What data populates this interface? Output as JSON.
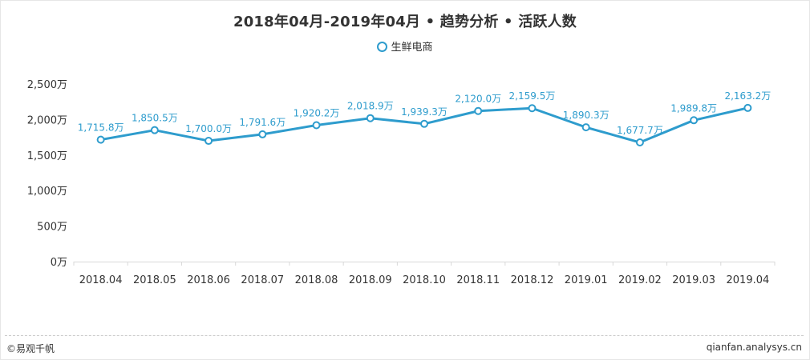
{
  "footer": {
    "left_text": "©易观千帆",
    "right_text": "qianfan.analysys.cn"
  },
  "chart_data": {
    "type": "line",
    "title": "2018年04月-2019年04月 • 趋势分析 • 活跃人数",
    "categories": [
      "2018.04",
      "2018.05",
      "2018.06",
      "2018.07",
      "2018.08",
      "2018.09",
      "2018.10",
      "2018.11",
      "2018.12",
      "2019.01",
      "2019.02",
      "2019.03",
      "2019.04"
    ],
    "series": [
      {
        "name": "生鲜电商",
        "values": [
          1715.8,
          1850.5,
          1700.0,
          1791.6,
          1920.2,
          2018.9,
          1939.3,
          2120.0,
          2159.5,
          1890.3,
          1677.7,
          1989.8,
          2163.2
        ],
        "labels": [
          "1,715.8万",
          "1,850.5万",
          "1,700.0万",
          "1,791.6万",
          "1,920.2万",
          "2,018.9万",
          "1,939.3万",
          "2,120.0万",
          "2,159.5万",
          "1,890.3万",
          "1,677.7万",
          "1,989.8万",
          "2,163.2万"
        ],
        "color": "#2e9ccd"
      }
    ],
    "yticks": [
      0,
      500,
      1000,
      1500,
      2000,
      2500
    ],
    "ytick_labels": [
      "0万",
      "500万",
      "1,000万",
      "1,500万",
      "2,000万",
      "2,500万"
    ],
    "ylim": [
      0,
      2500
    ],
    "xlabel": "",
    "ylabel": "",
    "legend_position": "top-center",
    "grid": false
  }
}
